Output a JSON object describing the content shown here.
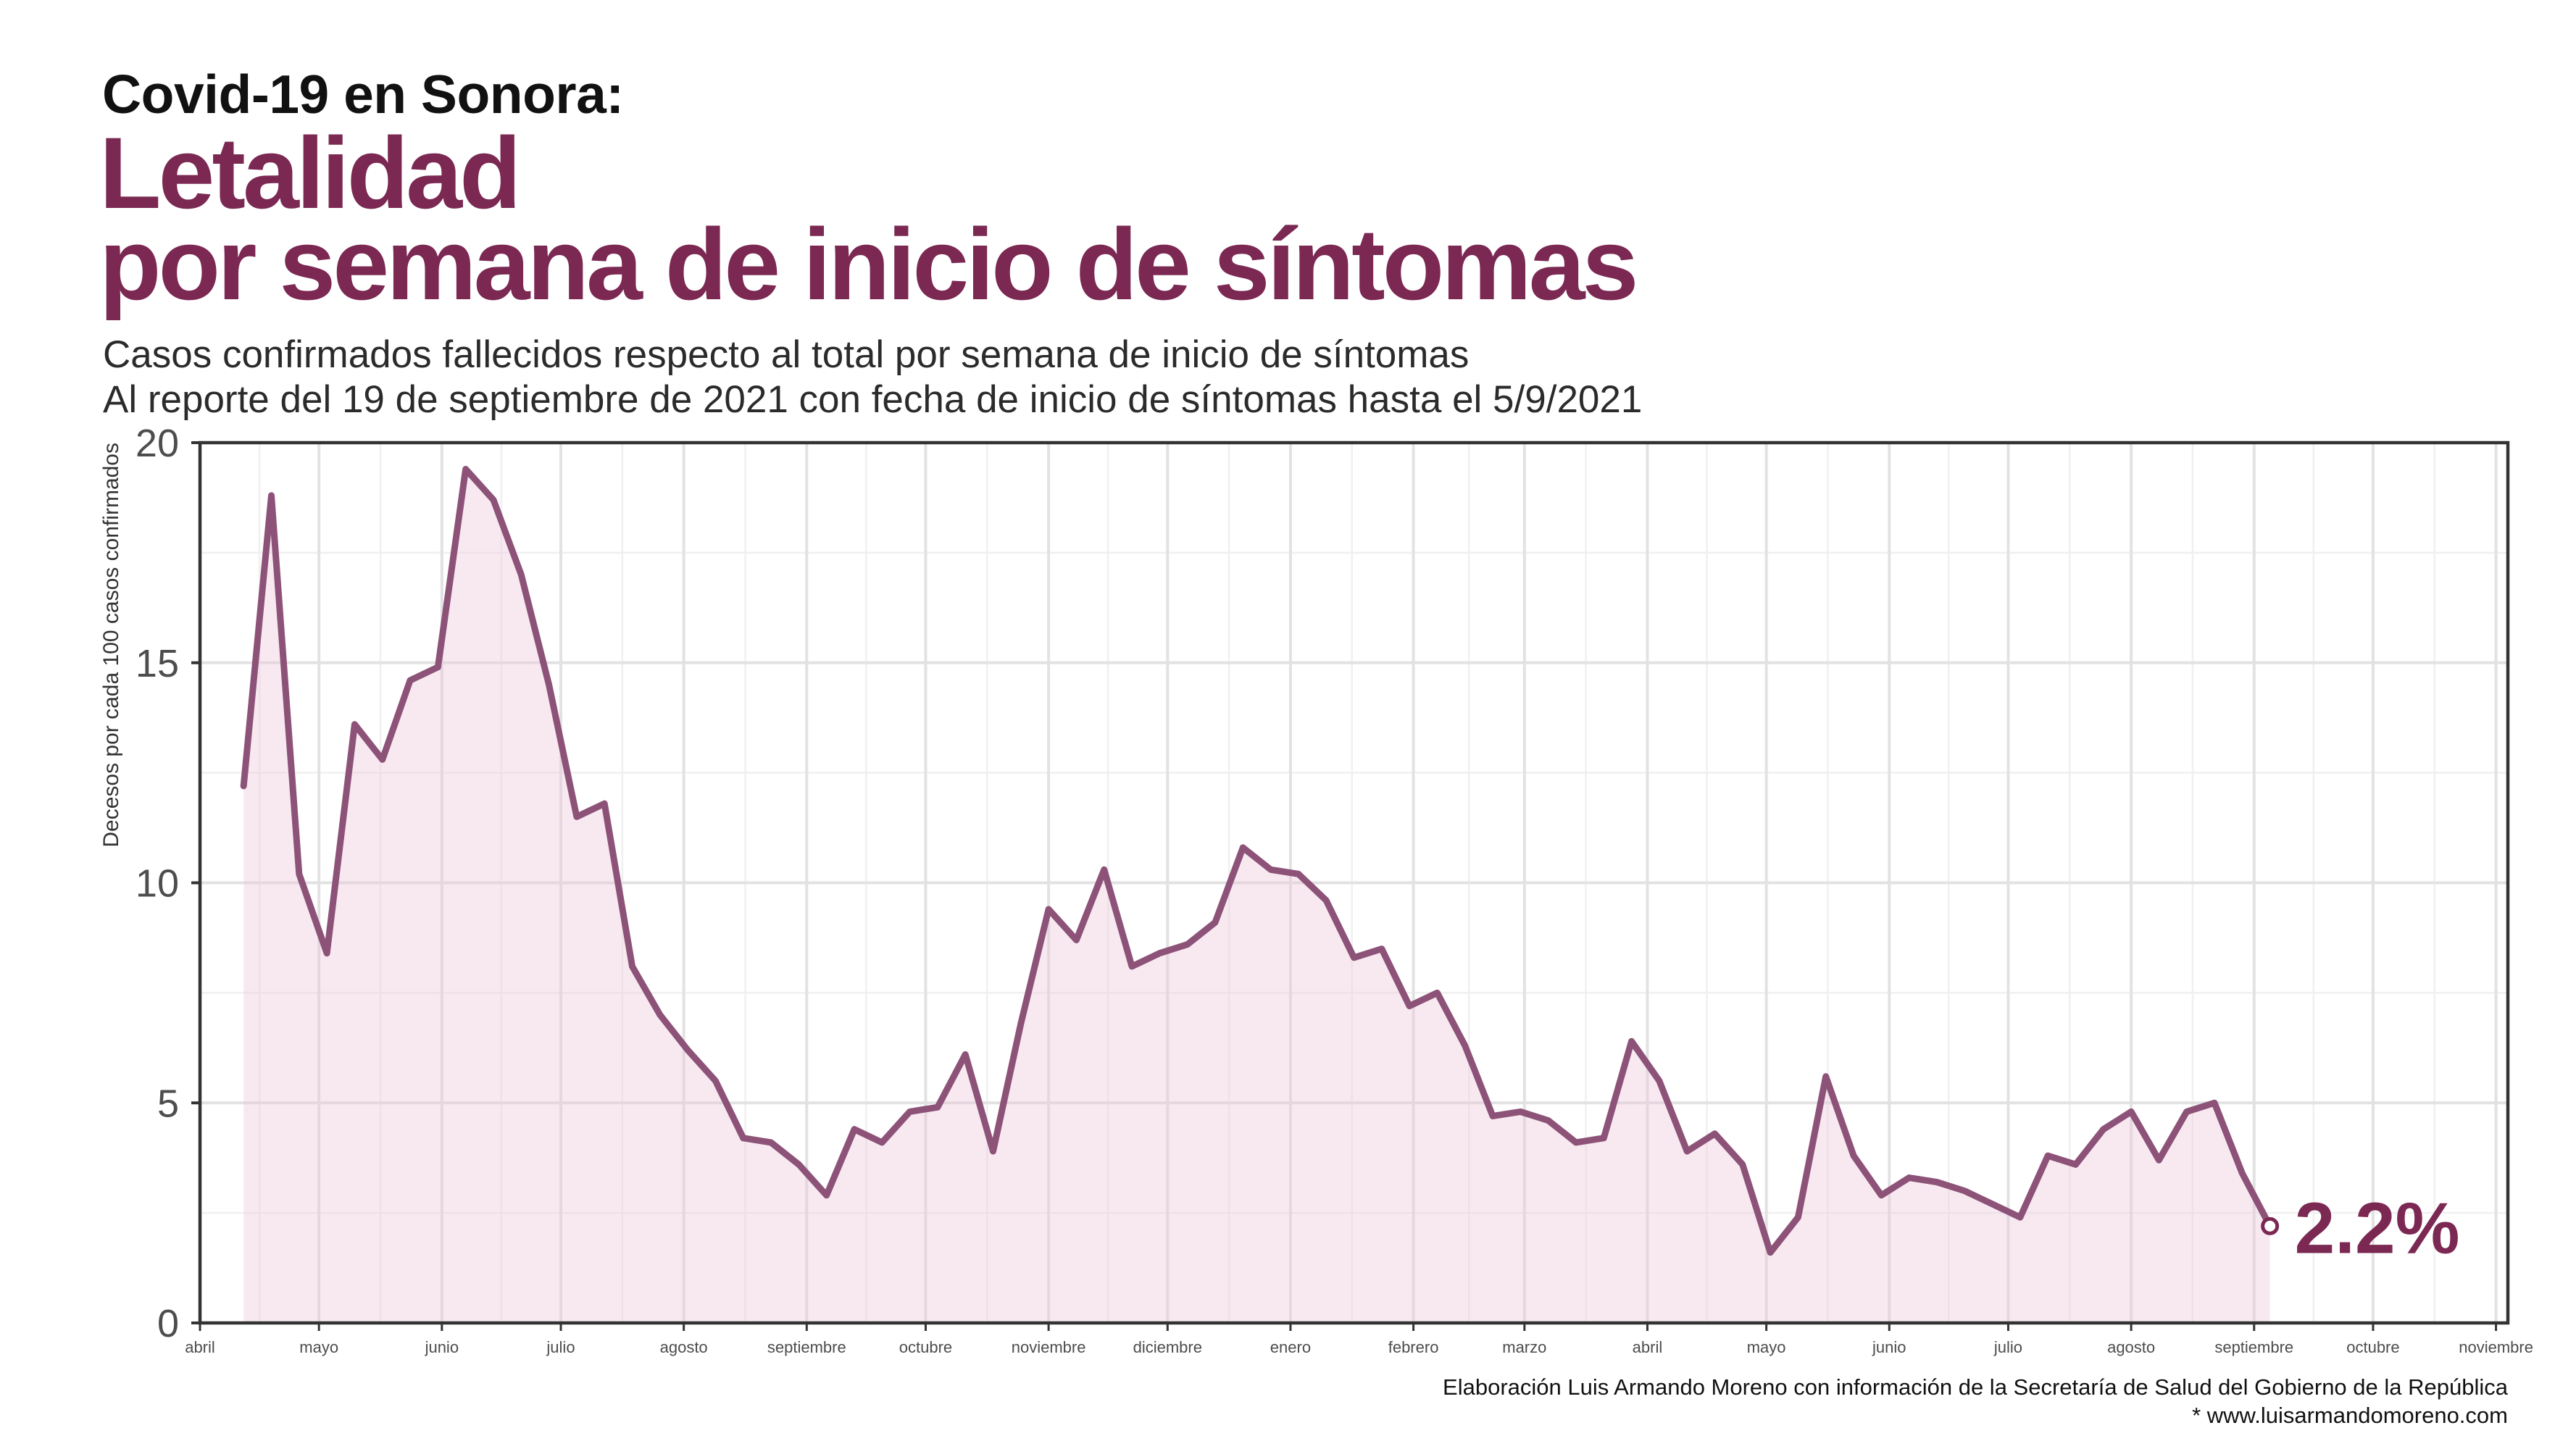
{
  "header": {
    "kicker": "Covid-19 en Sonora:",
    "title_line1": "Letalidad",
    "title_line2": "por semana de inicio de síntomas",
    "subtitle_line1": "Casos confirmados fallecidos respecto al total por semana de inicio de síntomas",
    "subtitle_line2": "Al reporte del 19 de septiembre de 2021 con fecha de inicio de síntomas hasta el 5/9/2021"
  },
  "chart_data": {
    "type": "area",
    "ylabel": "Decesos por cada 100 casos confirmados",
    "x": [
      "2020-04-12",
      "2020-04-19",
      "2020-04-26",
      "2020-05-03",
      "2020-05-10",
      "2020-05-17",
      "2020-05-24",
      "2020-05-31",
      "2020-06-07",
      "2020-06-14",
      "2020-06-21",
      "2020-06-28",
      "2020-07-05",
      "2020-07-12",
      "2020-07-19",
      "2020-07-26",
      "2020-08-02",
      "2020-08-09",
      "2020-08-16",
      "2020-08-23",
      "2020-08-30",
      "2020-09-06",
      "2020-09-13",
      "2020-09-20",
      "2020-09-27",
      "2020-10-04",
      "2020-10-11",
      "2020-10-18",
      "2020-10-25",
      "2020-11-01",
      "2020-11-08",
      "2020-11-15",
      "2020-11-22",
      "2020-11-29",
      "2020-12-06",
      "2020-12-13",
      "2020-12-20",
      "2020-12-27",
      "2021-01-03",
      "2021-01-10",
      "2021-01-17",
      "2021-01-24",
      "2021-01-31",
      "2021-02-07",
      "2021-02-14",
      "2021-02-21",
      "2021-02-28",
      "2021-03-07",
      "2021-03-14",
      "2021-03-21",
      "2021-03-28",
      "2021-04-04",
      "2021-04-11",
      "2021-04-18",
      "2021-04-25",
      "2021-05-02",
      "2021-05-09",
      "2021-05-16",
      "2021-05-23",
      "2021-05-30",
      "2021-06-06",
      "2021-06-13",
      "2021-06-20",
      "2021-06-27",
      "2021-07-04",
      "2021-07-11",
      "2021-07-18",
      "2021-07-25",
      "2021-08-01",
      "2021-08-08",
      "2021-08-15",
      "2021-08-22",
      "2021-08-29",
      "2021-09-05"
    ],
    "values": [
      12.2,
      18.8,
      10.2,
      8.4,
      13.6,
      12.8,
      14.6,
      14.9,
      19.4,
      18.7,
      17.0,
      14.5,
      11.5,
      11.8,
      8.1,
      7.0,
      6.2,
      5.5,
      4.2,
      4.1,
      3.6,
      2.9,
      4.4,
      4.1,
      4.8,
      4.9,
      6.1,
      3.9,
      6.8,
      9.4,
      8.7,
      10.3,
      8.1,
      8.4,
      8.6,
      9.1,
      10.8,
      10.3,
      10.2,
      9.6,
      8.3,
      8.5,
      7.2,
      7.5,
      6.3,
      4.7,
      4.8,
      4.6,
      4.1,
      4.2,
      6.4,
      5.5,
      3.9,
      4.3,
      3.6,
      1.6,
      2.4,
      5.6,
      3.8,
      2.9,
      3.3,
      3.2,
      3.0,
      2.7,
      2.4,
      3.8,
      3.6,
      4.4,
      4.8,
      3.7,
      4.8,
      5.0,
      3.4,
      2.2
    ],
    "xlim": [
      "2020-04-01",
      "2021-11-04"
    ],
    "ylim": [
      0,
      20
    ],
    "y_ticks": [
      0,
      5,
      10,
      15,
      20
    ],
    "x_ticks": [
      {
        "date": "2020-04-01",
        "label": "abril"
      },
      {
        "date": "2020-05-01",
        "label": "mayo"
      },
      {
        "date": "2020-06-01",
        "label": "junio"
      },
      {
        "date": "2020-07-01",
        "label": "julio"
      },
      {
        "date": "2020-08-01",
        "label": "agosto"
      },
      {
        "date": "2020-09-01",
        "label": "septiembre"
      },
      {
        "date": "2020-10-01",
        "label": "octubre"
      },
      {
        "date": "2020-11-01",
        "label": "noviembre"
      },
      {
        "date": "2020-12-01",
        "label": "diciembre"
      },
      {
        "date": "2021-01-01",
        "label": "enero"
      },
      {
        "date": "2021-02-01",
        "label": "febrero"
      },
      {
        "date": "2021-03-01",
        "label": "marzo"
      },
      {
        "date": "2021-04-01",
        "label": "abril"
      },
      {
        "date": "2021-05-01",
        "label": "mayo"
      },
      {
        "date": "2021-06-01",
        "label": "junio"
      },
      {
        "date": "2021-07-01",
        "label": "julio"
      },
      {
        "date": "2021-08-01",
        "label": "agosto"
      },
      {
        "date": "2021-09-01",
        "label": "septiembre"
      },
      {
        "date": "2021-10-01",
        "label": "octubre"
      },
      {
        "date": "2021-11-01",
        "label": "noviembre"
      }
    ],
    "grid": true,
    "end_label": "2.2%"
  },
  "caption": {
    "line1": "Elaboración Luis Armando Moreno con información de la Secretaría de Salud del Gobierno de la República",
    "line2": "* www.luisarmandomoreno.com"
  },
  "colors": {
    "title": "#7b2853",
    "line": "#8d5278",
    "area": "#eec8dd",
    "axis": "#333333",
    "grid_major": "#e2e2e2",
    "grid_minor": "#f0f0f0"
  }
}
